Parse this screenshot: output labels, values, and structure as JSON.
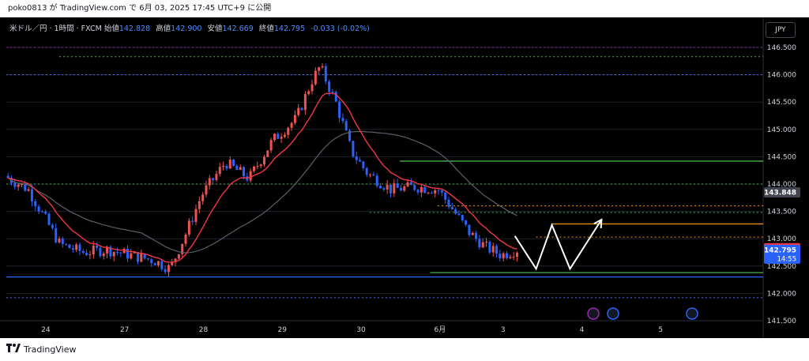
{
  "header": {
    "text": "poko0813 が TradingView.com で 6月 03, 2025 17:45 UTC+9 に公開"
  },
  "legend": {
    "symbol": "米ドル／円 · 1時間 · FXCM",
    "open_label": "始値",
    "open": "142.828",
    "high_label": "高値",
    "high": "142.900",
    "low_label": "安値",
    "low": "142.669",
    "close_label": "終値",
    "close": "142.795",
    "change": "-0.033 (-0.02%)"
  },
  "currency_button": "JPY",
  "footer": {
    "brand": "TradingView"
  },
  "colors": {
    "up": "#ef5350",
    "down": "#2962ff",
    "ema": "#f23645",
    "sma": "#5d606b",
    "green": "#4caf50",
    "orange": "#ff9800",
    "blue_line": "#2962ff",
    "magenta": "#9c27b0"
  },
  "chart_data": {
    "type": "candlestick",
    "symbol": "USD/JPY",
    "timeframe": "1h",
    "ylim": [
      141.5,
      146.7
    ],
    "y_ticks": [
      "146.500",
      "146.000",
      "145.500",
      "145.000",
      "144.500",
      "144.000",
      "143.500",
      "143.000",
      "142.500",
      "142.000",
      "141.500"
    ],
    "x_labels": [
      {
        "label": "24",
        "pos": 0.5
      },
      {
        "label": "27",
        "pos": 1.5
      },
      {
        "label": "28",
        "pos": 2.5
      },
      {
        "label": "29",
        "pos": 3.5
      },
      {
        "label": "30",
        "pos": 4.5
      },
      {
        "label": "6月",
        "pos": 5.5
      },
      {
        "label": "3",
        "pos": 6.3
      },
      {
        "label": "4",
        "pos": 7.3
      },
      {
        "label": "5",
        "pos": 8.3
      }
    ],
    "price_path": [
      [
        0,
        144.15
      ],
      [
        0.3,
        143.9
      ],
      [
        0.7,
        142.9
      ],
      [
        1.0,
        142.75
      ],
      [
        1.3,
        142.8
      ],
      [
        1.6,
        142.7
      ],
      [
        1.9,
        142.6
      ],
      [
        2.1,
        142.45
      ],
      [
        2.3,
        143.1
      ],
      [
        2.5,
        143.8
      ],
      [
        2.8,
        144.4
      ],
      [
        3.1,
        144.1
      ],
      [
        3.4,
        144.8
      ],
      [
        3.7,
        145.2
      ],
      [
        3.9,
        145.9
      ],
      [
        4.0,
        146.15
      ],
      [
        4.2,
        145.5
      ],
      [
        4.4,
        144.6
      ],
      [
        4.6,
        144.2
      ],
      [
        4.9,
        143.9
      ],
      [
        5.2,
        143.95
      ],
      [
        5.5,
        143.9
      ],
      [
        5.7,
        143.5
      ],
      [
        5.9,
        143.1
      ],
      [
        6.1,
        142.85
      ],
      [
        6.3,
        142.7
      ],
      [
        6.5,
        142.8
      ]
    ],
    "price_levels": [
      {
        "name": "142.825",
        "value": 142.825,
        "color": "#f23645",
        "text": "#ffffff"
      },
      {
        "name": "143.848",
        "value": 143.848,
        "color": "#434651",
        "text": "#ffffff"
      },
      {
        "name": "142.795",
        "value": 142.795,
        "color": "#2962ff",
        "text": "#ffffff",
        "sub": "14:55"
      }
    ],
    "horizontal_lines": [
      {
        "value": 146.5,
        "color": "#9c27b0",
        "style": "dotted"
      },
      {
        "value": 146.33,
        "color": "#4caf50",
        "style": "dotted",
        "x_from": 0.07
      },
      {
        "value": 146.0,
        "color": "#4f6cff",
        "style": "dotted"
      },
      {
        "value": 144.42,
        "color": "#4caf50",
        "style": "solid",
        "x_from": 0.52
      },
      {
        "value": 144.0,
        "color": "#4caf50",
        "style": "dotted"
      },
      {
        "value": 143.6,
        "color": "#ff9800",
        "style": "dotted",
        "x_from": 0.57
      },
      {
        "value": 143.48,
        "color": "#4caf50",
        "style": "dotted",
        "x_from": 0.48
      },
      {
        "value": 143.27,
        "color": "#ff9800",
        "style": "solid",
        "x_from": 0.72
      },
      {
        "value": 143.03,
        "color": "#ff9800",
        "style": "dotted",
        "x_from": 0.7
      },
      {
        "value": 142.38,
        "color": "#4caf50",
        "style": "solid",
        "x_from": 0.56
      },
      {
        "value": 142.3,
        "color": "#2962ff",
        "style": "solid"
      },
      {
        "value": 141.92,
        "color": "#4f6cff",
        "style": "dotted"
      }
    ],
    "projection_path": [
      [
        6.45,
        143.05
      ],
      [
        6.72,
        142.45
      ],
      [
        6.92,
        143.25
      ],
      [
        7.15,
        142.45
      ],
      [
        7.55,
        143.35
      ]
    ],
    "indicators": [
      "EMA (red)",
      "SMA (gray)"
    ]
  }
}
